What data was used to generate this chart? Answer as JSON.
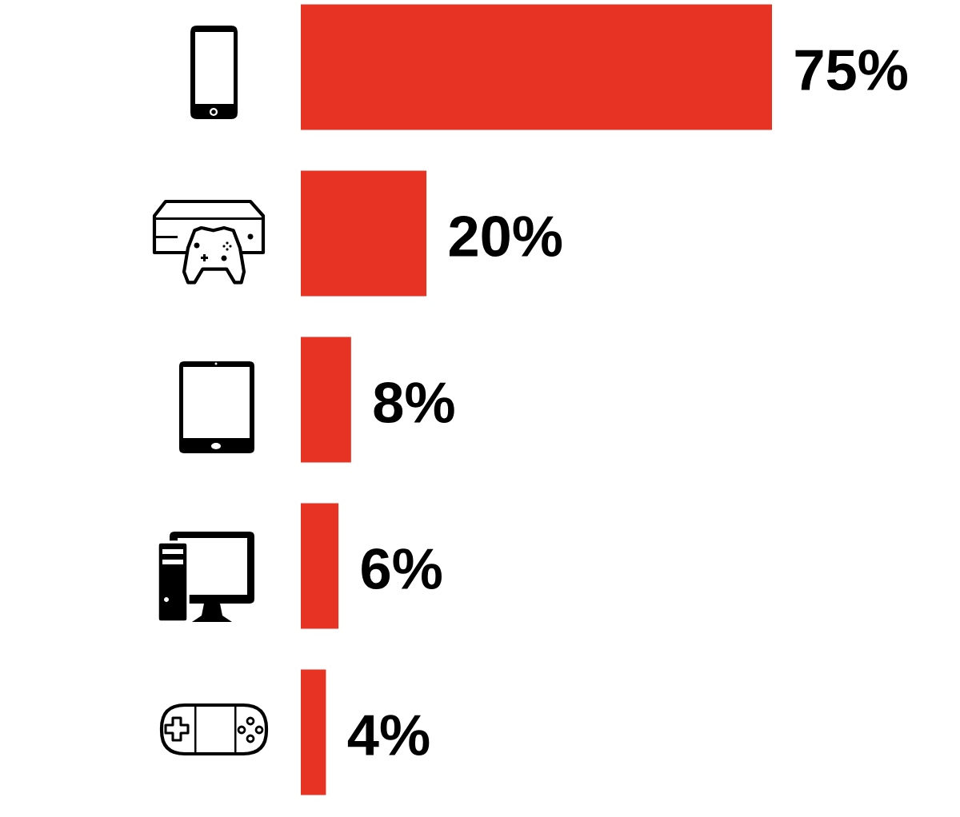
{
  "chart_data": {
    "type": "bar",
    "orientation": "horizontal",
    "categories": [
      null,
      null,
      null,
      null,
      null
    ],
    "values": [
      75,
      20,
      8,
      6,
      4
    ],
    "value_labels": [
      "75%",
      "20%",
      "8%",
      "6%",
      "4%"
    ],
    "color": "#e63323"
  }
}
